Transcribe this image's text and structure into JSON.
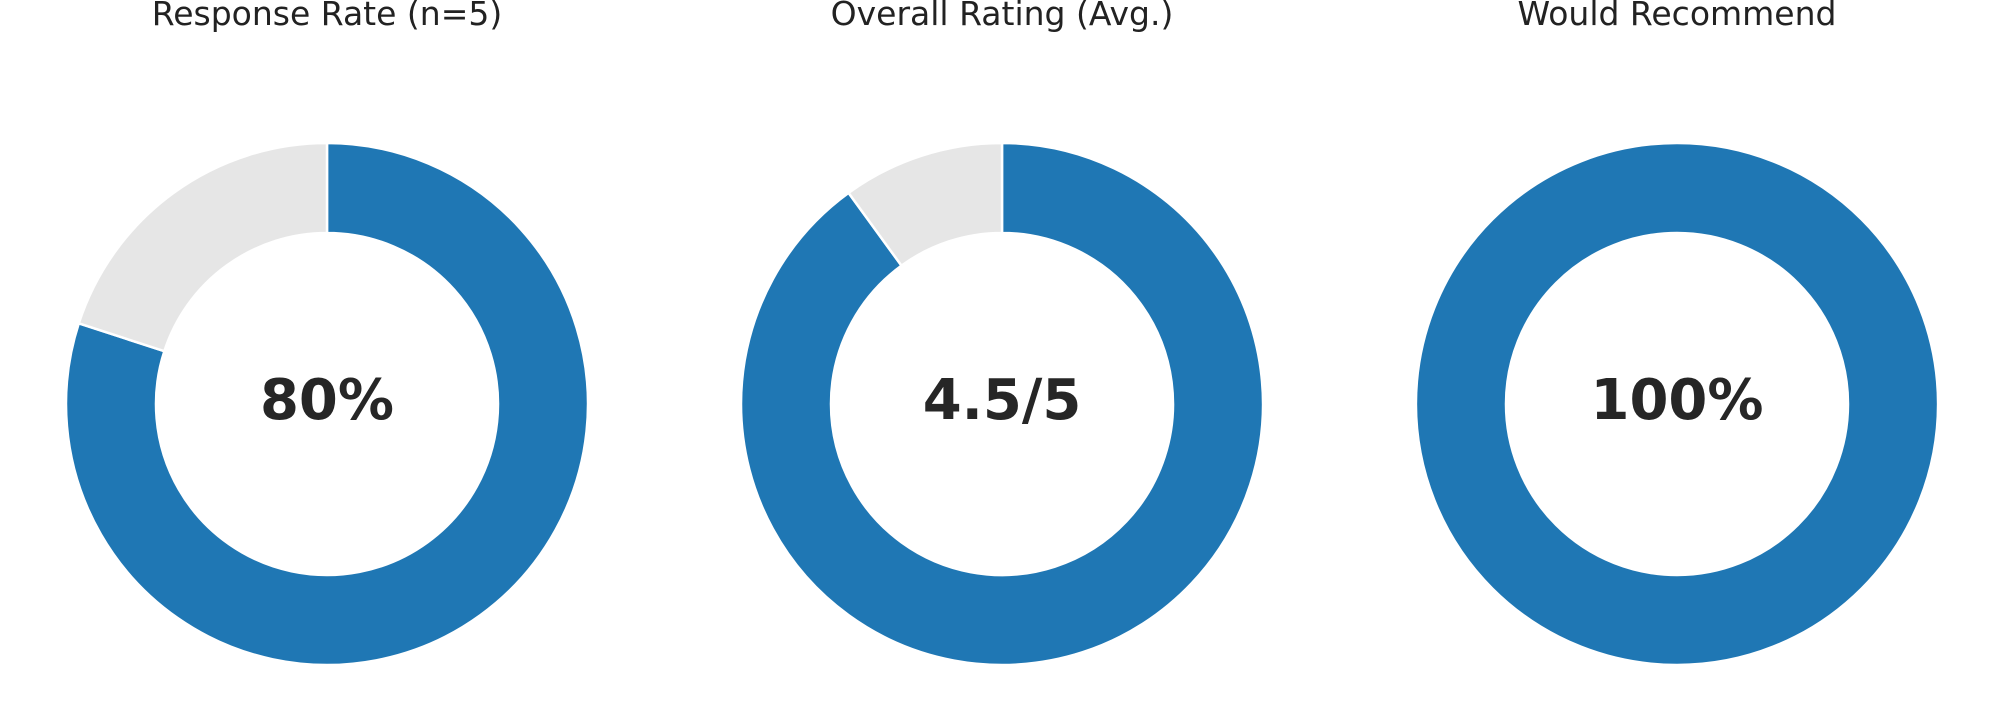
{
  "chart_data": [
    {
      "type": "donut",
      "title": "Response Rate (n=5)",
      "values": [
        80,
        20
      ],
      "colors": [
        "#1f77b4",
        "#e6e6e6"
      ],
      "center_label": "80%"
    },
    {
      "type": "donut",
      "title": "Overall Rating (Avg.)",
      "values": [
        4.5,
        0.5
      ],
      "colors": [
        "#1f77b4",
        "#e6e6e6"
      ],
      "center_label": "4.5/5"
    },
    {
      "type": "donut",
      "title": "Would Recommend",
      "values": [
        100
      ],
      "colors": [
        "#1f77b4"
      ],
      "center_label": "100%"
    }
  ]
}
